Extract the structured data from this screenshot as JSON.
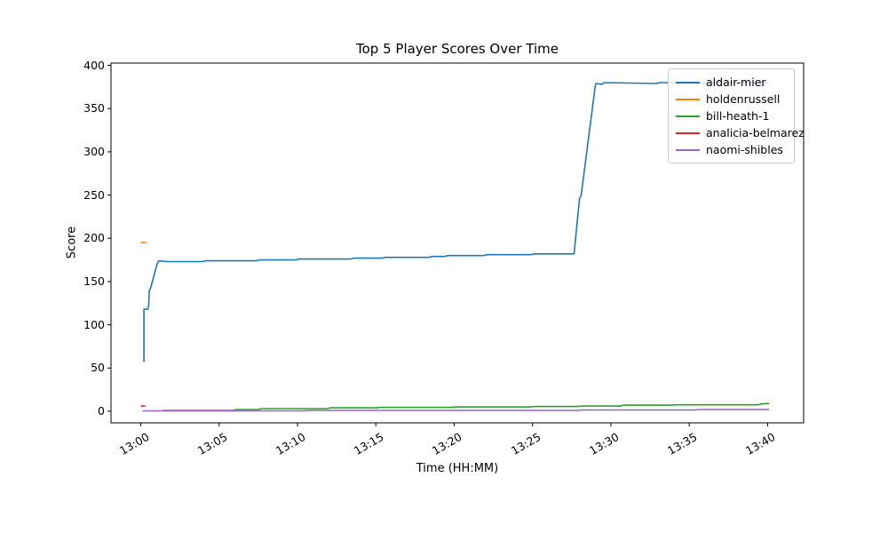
{
  "chart_data": {
    "type": "line",
    "title": "Top 5 Player Scores Over Time",
    "xlabel": "Time (HH:MM)",
    "ylabel": "Score",
    "grid": false,
    "legend_position": "upper right",
    "x_encoding": "minutes after 13:00",
    "x_ticks": [
      {
        "t": 0,
        "label": "13:00"
      },
      {
        "t": 5,
        "label": "13:05"
      },
      {
        "t": 10,
        "label": "13:10"
      },
      {
        "t": 15,
        "label": "13:15"
      },
      {
        "t": 20,
        "label": "13:20"
      },
      {
        "t": 25,
        "label": "13:25"
      },
      {
        "t": 30,
        "label": "13:30"
      },
      {
        "t": 35,
        "label": "13:35"
      },
      {
        "t": 40,
        "label": "13:40"
      }
    ],
    "y_ticks": [
      0,
      50,
      100,
      150,
      200,
      250,
      300,
      350,
      400
    ],
    "xlim_minutes": [
      -1.9,
      42.3
    ],
    "ylim": [
      -13.4,
      402.6
    ],
    "series": [
      {
        "name": "aldair-mier",
        "color": "#1f77b4",
        "points": [
          [
            0.2,
            57
          ],
          [
            0.2,
            118
          ],
          [
            0.45,
            118
          ],
          [
            0.5,
            122
          ],
          [
            0.55,
            140
          ],
          [
            0.62,
            142
          ],
          [
            1.05,
            171
          ],
          [
            1.15,
            174
          ],
          [
            1.6,
            173
          ],
          [
            3.9,
            173
          ],
          [
            4.1,
            174
          ],
          [
            7.4,
            174
          ],
          [
            7.6,
            175
          ],
          [
            9.9,
            175
          ],
          [
            10.1,
            176
          ],
          [
            13.4,
            176
          ],
          [
            13.6,
            177
          ],
          [
            15.4,
            177
          ],
          [
            15.6,
            178
          ],
          [
            18.4,
            178
          ],
          [
            18.6,
            179
          ],
          [
            19.4,
            179
          ],
          [
            19.6,
            180
          ],
          [
            21.9,
            180
          ],
          [
            22.1,
            181
          ],
          [
            24.9,
            181
          ],
          [
            25.1,
            182
          ],
          [
            27.65,
            182
          ],
          [
            28.0,
            246
          ],
          [
            28.1,
            249
          ],
          [
            29.0,
            376
          ],
          [
            29.05,
            379
          ],
          [
            29.45,
            378
          ],
          [
            29.55,
            380
          ],
          [
            32.9,
            379
          ],
          [
            33.1,
            380
          ],
          [
            35.4,
            380
          ],
          [
            35.6,
            379
          ],
          [
            35.9,
            379
          ],
          [
            36.1,
            380
          ],
          [
            40.1,
            380
          ]
        ]
      },
      {
        "name": "holdenrussell",
        "color": "#ff7f0e",
        "points": [
          [
            0.0,
            195
          ],
          [
            0.35,
            195
          ]
        ]
      },
      {
        "name": "bill-heath-1",
        "color": "#2ca02c",
        "points": [
          [
            1.4,
            1
          ],
          [
            5.9,
            1
          ],
          [
            6.1,
            2
          ],
          [
            7.5,
            2
          ],
          [
            7.7,
            3
          ],
          [
            11.9,
            3
          ],
          [
            12.1,
            4
          ],
          [
            15.1,
            4
          ],
          [
            15.3,
            4.5
          ],
          [
            19.9,
            4.5
          ],
          [
            20.1,
            5
          ],
          [
            24.9,
            5
          ],
          [
            25.1,
            5.5
          ],
          [
            27.9,
            5.5
          ],
          [
            28.1,
            6
          ],
          [
            30.6,
            6
          ],
          [
            30.8,
            7
          ],
          [
            33.9,
            7
          ],
          [
            34.1,
            7.5
          ],
          [
            39.4,
            7.5
          ],
          [
            39.6,
            8.5
          ],
          [
            40.1,
            9
          ]
        ]
      },
      {
        "name": "analicia-belmarez",
        "color": "#d62728",
        "points": [
          [
            0.0,
            6
          ],
          [
            0.3,
            6
          ]
        ]
      },
      {
        "name": "naomi-shibles",
        "color": "#9467bd",
        "points": [
          [
            0.1,
            0.5
          ],
          [
            10.4,
            0.5
          ],
          [
            10.6,
            1
          ],
          [
            27.9,
            1
          ],
          [
            28.1,
            1.5
          ],
          [
            35.4,
            1.5
          ],
          [
            35.6,
            2
          ],
          [
            40.1,
            2
          ]
        ]
      }
    ]
  }
}
